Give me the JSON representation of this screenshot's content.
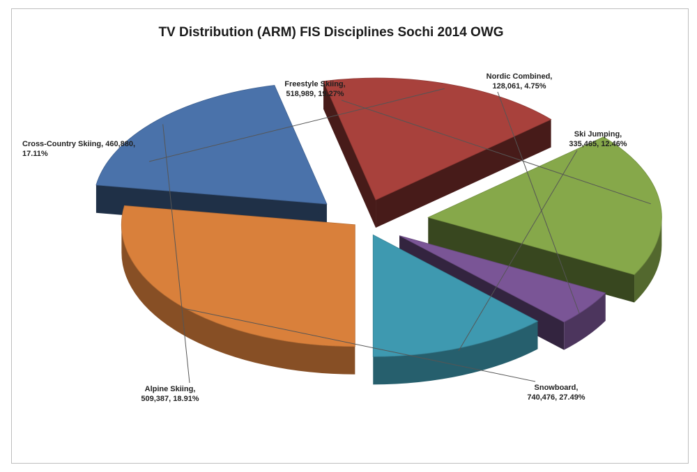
{
  "chart_data": {
    "type": "pie",
    "title": "TV Distribution (ARM) FIS Disciplines Sochi 2014 OWG",
    "slices": [
      {
        "name": "Snowboard",
        "value": 740476,
        "percent": "27.49%",
        "value_label": "740,476",
        "color": "#d9803b"
      },
      {
        "name": "Alpine Skiing",
        "value": 509387,
        "percent": "18.91%",
        "value_label": "509,387",
        "color": "#4a72aa"
      },
      {
        "name": "Cross-Country Skiing",
        "value": 460880,
        "percent": "17.11%",
        "value_label": "460,880",
        "color": "#a8413c"
      },
      {
        "name": "Freestyle Skiing",
        "value": 518989,
        "percent": "19.27%",
        "value_label": "518,989",
        "color": "#86a84a"
      },
      {
        "name": "Nordic Combined",
        "value": 128061,
        "percent": "4.75%",
        "value_label": "128,061",
        "color": "#7a5596"
      },
      {
        "name": "Ski Jumping",
        "value": 335465,
        "percent": "12.46%",
        "value_label": "335,465",
        "color": "#3e99b0"
      }
    ]
  }
}
